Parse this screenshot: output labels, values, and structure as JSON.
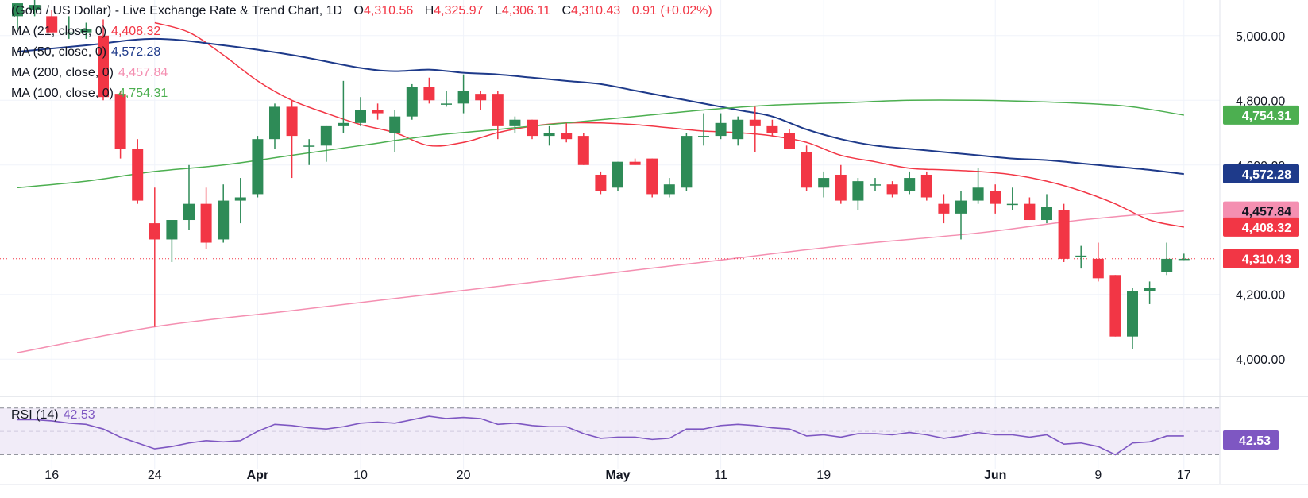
{
  "header": {
    "title": "(Gold / US Dollar) - Live Exchange Rate & Trend Chart, 1D",
    "ohlc": [
      {
        "k": "O",
        "v": "4,310.56"
      },
      {
        "k": "H",
        "v": "4,325.97"
      },
      {
        "k": "L",
        "v": "4,306.11"
      },
      {
        "k": "C",
        "v": "4,310.43"
      }
    ],
    "change": "0.91 (+0.02%)"
  },
  "indicators": [
    {
      "label": "MA (21, close, 0)",
      "value": "4,408.32",
      "color": "#f23645"
    },
    {
      "label": "MA (50, close, 0)",
      "value": "4,572.28",
      "color": "#1e3a8a"
    },
    {
      "label": "MA (200, close, 0)",
      "value": "4,457.84",
      "color": "#f48fb1"
    },
    {
      "label": "MA (100, close, 0)",
      "value": "4,754.31",
      "color": "#4caf50"
    }
  ],
  "rsi": {
    "label": "RSI (14)",
    "value": "42.53",
    "color": "#7e57c2"
  },
  "price_tags": [
    {
      "value": 4754.31,
      "text": "4,754.31",
      "bg": "#4caf50",
      "fg": "#ffffff"
    },
    {
      "value": 4572.28,
      "text": "4,572.28",
      "bg": "#1e3a8a",
      "fg": "#ffffff"
    },
    {
      "value": 4457.84,
      "text": "4,457.84",
      "bg": "#f48fb1",
      "fg": "#131722"
    },
    {
      "value": 4408.32,
      "text": "4,408.32",
      "bg": "#f23645",
      "fg": "#ffffff"
    },
    {
      "value": 4310.43,
      "text": "4,310.43",
      "bg": "#f23645",
      "fg": "#ffffff"
    }
  ],
  "chart_data": {
    "type": "candlestick",
    "up_color": "#2e8b57",
    "down_color": "#f23645",
    "ylim": [
      3890,
      5110
    ],
    "y_ticks": [
      {
        "v": 4000,
        "label": "4,000.00"
      },
      {
        "v": 4200,
        "label": "4,200.00"
      },
      {
        "v": 4600,
        "label": "4,600.00"
      },
      {
        "v": 4800,
        "label": "4,800.00"
      },
      {
        "v": 5000,
        "label": "5,000.00"
      }
    ],
    "x_ticks": [
      {
        "i": 2,
        "label": "16",
        "bold": false
      },
      {
        "i": 8,
        "label": "24",
        "bold": false
      },
      {
        "i": 14,
        "label": "Apr",
        "bold": true
      },
      {
        "i": 20,
        "label": "10",
        "bold": false
      },
      {
        "i": 26,
        "label": "20",
        "bold": false
      },
      {
        "i": 35,
        "label": "May",
        "bold": true
      },
      {
        "i": 41,
        "label": "11",
        "bold": false
      },
      {
        "i": 47,
        "label": "19",
        "bold": false
      },
      {
        "i": 57,
        "label": "Jun",
        "bold": true
      },
      {
        "i": 63,
        "label": "9",
        "bold": false
      },
      {
        "i": 68,
        "label": "17",
        "bold": false
      }
    ],
    "last_price": 4310.43,
    "candles": [
      {
        "o": 5060,
        "h": 5100,
        "l": 5020,
        "c": 5100
      },
      {
        "o": 5080,
        "h": 5110,
        "l": 5060,
        "c": 5095
      },
      {
        "o": 5060,
        "h": 5080,
        "l": 5010,
        "c": 5010
      },
      {
        "o": 5010,
        "h": 5060,
        "l": 4990,
        "c": 5010
      },
      {
        "o": 5010,
        "h": 5040,
        "l": 4990,
        "c": 5020
      },
      {
        "o": 5000,
        "h": 5050,
        "l": 4800,
        "c": 4810
      },
      {
        "o": 4820,
        "h": 4830,
        "l": 4620,
        "c": 4650
      },
      {
        "o": 4650,
        "h": 4680,
        "l": 4480,
        "c": 4490
      },
      {
        "o": 4420,
        "h": 4530,
        "l": 4100,
        "c": 4370
      },
      {
        "o": 4370,
        "h": 4420,
        "l": 4300,
        "c": 4430
      },
      {
        "o": 4430,
        "h": 4600,
        "l": 4400,
        "c": 4480
      },
      {
        "o": 4480,
        "h": 4530,
        "l": 4340,
        "c": 4360
      },
      {
        "o": 4370,
        "h": 4540,
        "l": 4360,
        "c": 4490
      },
      {
        "o": 4490,
        "h": 4560,
        "l": 4420,
        "c": 4500
      },
      {
        "o": 4510,
        "h": 4690,
        "l": 4500,
        "c": 4680
      },
      {
        "o": 4680,
        "h": 4790,
        "l": 4650,
        "c": 4780
      },
      {
        "o": 4780,
        "h": 4800,
        "l": 4560,
        "c": 4690
      },
      {
        "o": 4660,
        "h": 4680,
        "l": 4600,
        "c": 4660
      },
      {
        "o": 4660,
        "h": 4720,
        "l": 4610,
        "c": 4720
      },
      {
        "o": 4720,
        "h": 4860,
        "l": 4700,
        "c": 4730
      },
      {
        "o": 4730,
        "h": 4810,
        "l": 4720,
        "c": 4770
      },
      {
        "o": 4770,
        "h": 4790,
        "l": 4740,
        "c": 4760
      },
      {
        "o": 4700,
        "h": 4770,
        "l": 4640,
        "c": 4750
      },
      {
        "o": 4750,
        "h": 4850,
        "l": 4740,
        "c": 4840
      },
      {
        "o": 4840,
        "h": 4870,
        "l": 4790,
        "c": 4800
      },
      {
        "o": 4790,
        "h": 4830,
        "l": 4780,
        "c": 4790
      },
      {
        "o": 4790,
        "h": 4880,
        "l": 4760,
        "c": 4830
      },
      {
        "o": 4820,
        "h": 4830,
        "l": 4770,
        "c": 4800
      },
      {
        "o": 4820,
        "h": 4830,
        "l": 4680,
        "c": 4720
      },
      {
        "o": 4720,
        "h": 4750,
        "l": 4700,
        "c": 4740
      },
      {
        "o": 4740,
        "h": 4740,
        "l": 4680,
        "c": 4690
      },
      {
        "o": 4690,
        "h": 4720,
        "l": 4660,
        "c": 4700
      },
      {
        "o": 4700,
        "h": 4730,
        "l": 4670,
        "c": 4680
      },
      {
        "o": 4690,
        "h": 4700,
        "l": 4600,
        "c": 4600
      },
      {
        "o": 4570,
        "h": 4580,
        "l": 4510,
        "c": 4520
      },
      {
        "o": 4530,
        "h": 4610,
        "l": 4520,
        "c": 4610
      },
      {
        "o": 4610,
        "h": 4620,
        "l": 4600,
        "c": 4600
      },
      {
        "o": 4620,
        "h": 4620,
        "l": 4500,
        "c": 4510
      },
      {
        "o": 4510,
        "h": 4560,
        "l": 4500,
        "c": 4540
      },
      {
        "o": 4530,
        "h": 4700,
        "l": 4520,
        "c": 4690
      },
      {
        "o": 4690,
        "h": 4760,
        "l": 4660,
        "c": 4690
      },
      {
        "o": 4690,
        "h": 4760,
        "l": 4680,
        "c": 4730
      },
      {
        "o": 4680,
        "h": 4750,
        "l": 4660,
        "c": 4740
      },
      {
        "o": 4740,
        "h": 4780,
        "l": 4640,
        "c": 4720
      },
      {
        "o": 4720,
        "h": 4740,
        "l": 4690,
        "c": 4700
      },
      {
        "o": 4700,
        "h": 4710,
        "l": 4650,
        "c": 4650
      },
      {
        "o": 4640,
        "h": 4660,
        "l": 4520,
        "c": 4530
      },
      {
        "o": 4530,
        "h": 4580,
        "l": 4500,
        "c": 4560
      },
      {
        "o": 4570,
        "h": 4600,
        "l": 4480,
        "c": 4490
      },
      {
        "o": 4490,
        "h": 4560,
        "l": 4460,
        "c": 4550
      },
      {
        "o": 4540,
        "h": 4560,
        "l": 4520,
        "c": 4540
      },
      {
        "o": 4540,
        "h": 4550,
        "l": 4500,
        "c": 4510
      },
      {
        "o": 4520,
        "h": 4580,
        "l": 4510,
        "c": 4560
      },
      {
        "o": 4570,
        "h": 4580,
        "l": 4490,
        "c": 4500
      },
      {
        "o": 4480,
        "h": 4510,
        "l": 4420,
        "c": 4450
      },
      {
        "o": 4450,
        "h": 4520,
        "l": 4370,
        "c": 4490
      },
      {
        "o": 4490,
        "h": 4590,
        "l": 4480,
        "c": 4530
      },
      {
        "o": 4520,
        "h": 4540,
        "l": 4450,
        "c": 4480
      },
      {
        "o": 4480,
        "h": 4530,
        "l": 4460,
        "c": 4480
      },
      {
        "o": 4480,
        "h": 4500,
        "l": 4430,
        "c": 4430
      },
      {
        "o": 4430,
        "h": 4510,
        "l": 4420,
        "c": 4470
      },
      {
        "o": 4460,
        "h": 4480,
        "l": 4300,
        "c": 4310
      },
      {
        "o": 4320,
        "h": 4350,
        "l": 4280,
        "c": 4320
      },
      {
        "o": 4310,
        "h": 4360,
        "l": 4240,
        "c": 4250
      },
      {
        "o": 4260,
        "h": 4260,
        "l": 4070,
        "c": 4070
      },
      {
        "o": 4070,
        "h": 4220,
        "l": 4030,
        "c": 4210
      },
      {
        "o": 4210,
        "h": 4240,
        "l": 4170,
        "c": 4220
      },
      {
        "o": 4270,
        "h": 4360,
        "l": 4260,
        "c": 4310
      },
      {
        "o": 4310,
        "h": 4326,
        "l": 4306,
        "c": 4310
      }
    ],
    "ma_lines": [
      {
        "name": "MA (21, close, 0)",
        "color": "#f23645",
        "points": [
          [
            8,
            5040
          ],
          [
            10,
            5010
          ],
          [
            12,
            4940
          ],
          [
            14,
            4860
          ],
          [
            16,
            4800
          ],
          [
            18,
            4760
          ],
          [
            20,
            4725
          ],
          [
            22,
            4700
          ],
          [
            24,
            4660
          ],
          [
            26,
            4670
          ],
          [
            28,
            4700
          ],
          [
            30,
            4720
          ],
          [
            32,
            4730
          ],
          [
            34,
            4730
          ],
          [
            36,
            4725
          ],
          [
            38,
            4715
          ],
          [
            40,
            4705
          ],
          [
            42,
            4700
          ],
          [
            44,
            4690
          ],
          [
            46,
            4670
          ],
          [
            48,
            4630
          ],
          [
            50,
            4610
          ],
          [
            52,
            4590
          ],
          [
            54,
            4585
          ],
          [
            56,
            4580
          ],
          [
            58,
            4570
          ],
          [
            60,
            4550
          ],
          [
            62,
            4520
          ],
          [
            64,
            4480
          ],
          [
            66,
            4430
          ],
          [
            68,
            4408
          ]
        ]
      },
      {
        "name": "MA (50, close, 0)",
        "color": "#1e3a8a",
        "points": [
          [
            0,
            4950
          ],
          [
            4,
            4970
          ],
          [
            8,
            4990
          ],
          [
            12,
            4970
          ],
          [
            16,
            4940
          ],
          [
            20,
            4900
          ],
          [
            22,
            4890
          ],
          [
            24,
            4895
          ],
          [
            26,
            4885
          ],
          [
            28,
            4880
          ],
          [
            30,
            4870
          ],
          [
            32,
            4860
          ],
          [
            34,
            4850
          ],
          [
            36,
            4830
          ],
          [
            38,
            4810
          ],
          [
            40,
            4790
          ],
          [
            42,
            4770
          ],
          [
            44,
            4750
          ],
          [
            46,
            4710
          ],
          [
            48,
            4680
          ],
          [
            50,
            4660
          ],
          [
            52,
            4650
          ],
          [
            54,
            4640
          ],
          [
            56,
            4630
          ],
          [
            58,
            4620
          ],
          [
            60,
            4615
          ],
          [
            62,
            4605
          ],
          [
            64,
            4595
          ],
          [
            66,
            4585
          ],
          [
            68,
            4572
          ]
        ]
      },
      {
        "name": "MA (200, close, 0)",
        "color": "#f48fb1",
        "points": [
          [
            0,
            4020
          ],
          [
            8,
            4100
          ],
          [
            16,
            4150
          ],
          [
            24,
            4200
          ],
          [
            32,
            4250
          ],
          [
            40,
            4300
          ],
          [
            48,
            4350
          ],
          [
            56,
            4390
          ],
          [
            62,
            4430
          ],
          [
            68,
            4458
          ]
        ]
      },
      {
        "name": "MA (100, close, 0)",
        "color": "#4caf50",
        "points": [
          [
            0,
            4530
          ],
          [
            4,
            4550
          ],
          [
            8,
            4580
          ],
          [
            12,
            4600
          ],
          [
            16,
            4630
          ],
          [
            20,
            4660
          ],
          [
            24,
            4690
          ],
          [
            28,
            4710
          ],
          [
            32,
            4730
          ],
          [
            36,
            4750
          ],
          [
            40,
            4770
          ],
          [
            44,
            4785
          ],
          [
            48,
            4792
          ],
          [
            52,
            4800
          ],
          [
            56,
            4800
          ],
          [
            60,
            4795
          ],
          [
            64,
            4785
          ],
          [
            66,
            4772
          ],
          [
            68,
            4754
          ]
        ]
      }
    ],
    "rsi_ylim": [
      18,
      76
    ],
    "rsi_band": [
      30,
      70
    ],
    "rsi_values": [
      60,
      60,
      59,
      57,
      56,
      52,
      45,
      40,
      35,
      37,
      40,
      42,
      41,
      42,
      50,
      56,
      55,
      53,
      52,
      54,
      57,
      58,
      57,
      60,
      63,
      61,
      62,
      61,
      56,
      57,
      55,
      54,
      54,
      48,
      44,
      45,
      45,
      43,
      44,
      52,
      52,
      55,
      56,
      55,
      53,
      52,
      46,
      47,
      45,
      48,
      48,
      47,
      49,
      47,
      44,
      46,
      49,
      47,
      47,
      45,
      47,
      39,
      40,
      37,
      30,
      40,
      41,
      46,
      46
    ]
  }
}
